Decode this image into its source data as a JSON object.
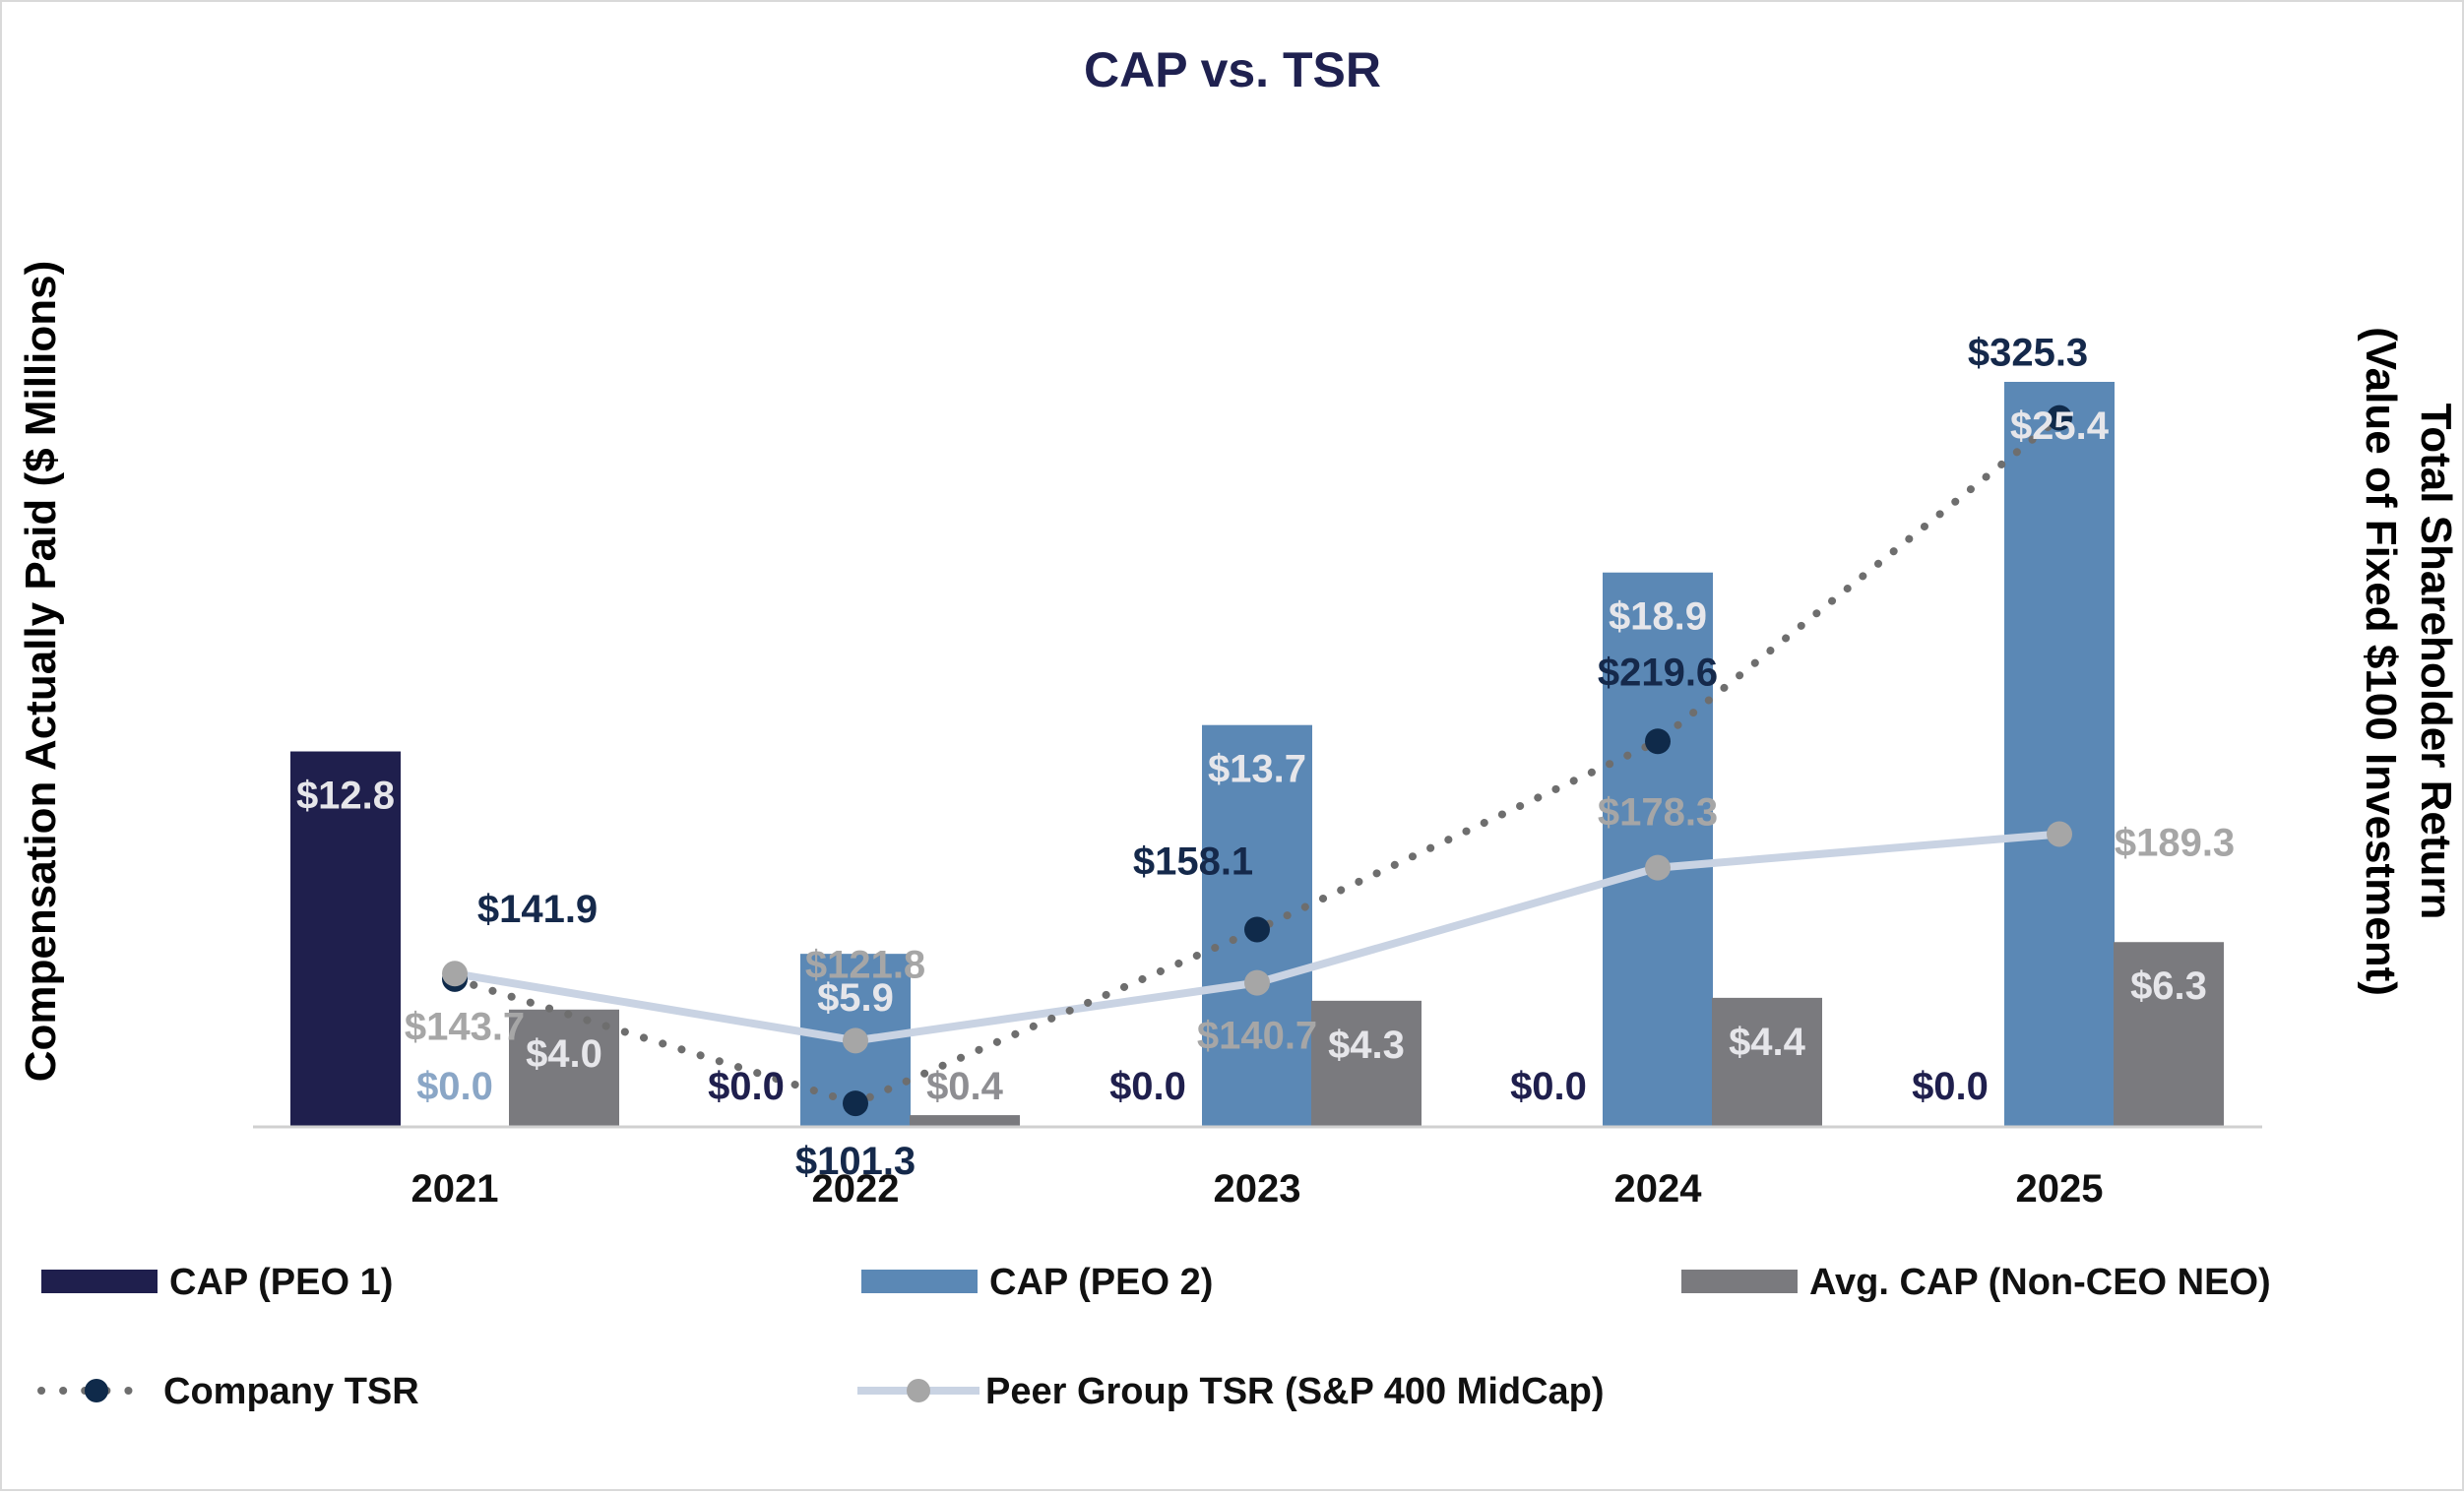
{
  "chart_data": {
    "type": "bar+line",
    "title": "CAP vs. TSR",
    "ylabel_left": "Compensation Actually Paid ($ Millions)",
    "ylabel_right_line1": "Total Shareholder Return",
    "ylabel_right_line2": "(Value of Fixed $100 Investment)",
    "categories": [
      "2021",
      "2022",
      "2023",
      "2024",
      "2025"
    ],
    "ylim_left": [
      0,
      30
    ],
    "ylim_right": [
      0,
      400
    ],
    "bar_series": [
      {
        "name": "CAP (PEO 1)",
        "color": "#1f1f4d",
        "values": [
          12.8,
          0.0,
          0.0,
          0.0,
          0.0
        ],
        "labels": [
          "$12.8",
          "$0.0",
          "$0.0",
          "$0.0",
          "$0.0"
        ]
      },
      {
        "name": "CAP (PEO 2)",
        "color": "#5b88b5",
        "values": [
          0.0,
          5.9,
          13.7,
          18.9,
          25.4
        ],
        "labels": [
          "$0.0",
          "$5.9",
          "$13.7",
          "$18.9",
          "$25.4"
        ]
      },
      {
        "name": "Avg. CAP (Non-CEO NEO)",
        "color": "#7a7a7e",
        "values": [
          4.0,
          0.4,
          4.3,
          4.4,
          6.3
        ],
        "labels": [
          "$4.0",
          "$0.4",
          "$4.3",
          "$4.4",
          "$6.3"
        ]
      }
    ],
    "line_series": [
      {
        "name": "Company TSR",
        "color": "#0f2a4a",
        "line_color": "#6e6e6e",
        "style": "dotted",
        "values": [
          141.9,
          101.3,
          158.1,
          219.6,
          325.3
        ],
        "labels": [
          "$141.9",
          "$101.3",
          "$158.1",
          "$219.6",
          "$325.3"
        ]
      },
      {
        "name": "Peer Group TSR (S&P 400 MidCap)",
        "color": "#a6a6a6",
        "line_color": "#c9d3e3",
        "style": "solid",
        "values": [
          143.7,
          121.8,
          140.7,
          178.3,
          189.3
        ],
        "labels": [
          "$143.7",
          "$121.8",
          "$140.7",
          "$178.3",
          "$189.3"
        ]
      }
    ],
    "legend": [
      "CAP (PEO 1)",
      "CAP (PEO 2)",
      "Avg. CAP (Non-CEO NEO)",
      "Company TSR",
      "Peer Group TSR (S&P 400 MidCap)"
    ],
    "legend_position": "bottom"
  }
}
